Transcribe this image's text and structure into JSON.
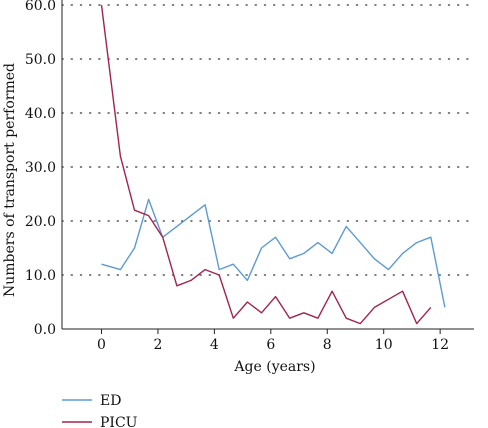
{
  "chart_data": {
    "type": "line",
    "xlabel": "Age (years)",
    "ylabel": "Numbers of transport performed",
    "xlim": [
      -1.4,
      13.2
    ],
    "ylim": [
      0,
      60
    ],
    "xticks": [
      0,
      2,
      4,
      6,
      8,
      10,
      12
    ],
    "xtick_labels": [
      "0",
      "2",
      "4",
      "6",
      "8",
      "10",
      "12"
    ],
    "yticks": [
      0,
      10,
      20,
      30,
      40,
      50,
      60
    ],
    "ytick_labels": [
      "0.0",
      "10.0",
      "20.0",
      "30.0",
      "40.0",
      "50.0",
      "60.0"
    ],
    "grid": "horizontal dotted",
    "legend_position": "bottom-left",
    "series": [
      {
        "name": "ED",
        "color": "#5b9bd5",
        "x": [
          0,
          0.67,
          1.17,
          1.67,
          2.17,
          2.67,
          3.17,
          3.67,
          4.17,
          4.67,
          5.17,
          5.67,
          6.17,
          6.67,
          7.17,
          7.67,
          8.17,
          8.67,
          9.17,
          9.67,
          10.17,
          10.67,
          11.17,
          11.67,
          12.17
        ],
        "values": [
          12,
          11,
          15,
          24,
          17,
          19,
          21,
          23,
          11,
          12,
          9,
          15,
          17,
          13,
          14,
          16,
          14,
          19,
          16,
          13,
          11,
          14,
          16,
          17,
          4
        ]
      },
      {
        "name": "PICU",
        "color": "#a3234f",
        "x": [
          0,
          0.67,
          1.17,
          1.67,
          2.17,
          2.67,
          3.17,
          3.67,
          4.17,
          4.67,
          5.17,
          5.67,
          6.17,
          6.67,
          7.17,
          7.67,
          8.17,
          8.67,
          9.17,
          9.67,
          10.17,
          10.67,
          11.17,
          11.67
        ],
        "values": [
          60,
          32,
          22,
          21,
          17,
          8,
          9,
          11,
          10,
          2,
          5,
          3,
          6,
          2,
          3,
          2,
          7,
          2,
          1,
          4,
          5.5,
          7,
          1,
          4
        ]
      }
    ]
  }
}
